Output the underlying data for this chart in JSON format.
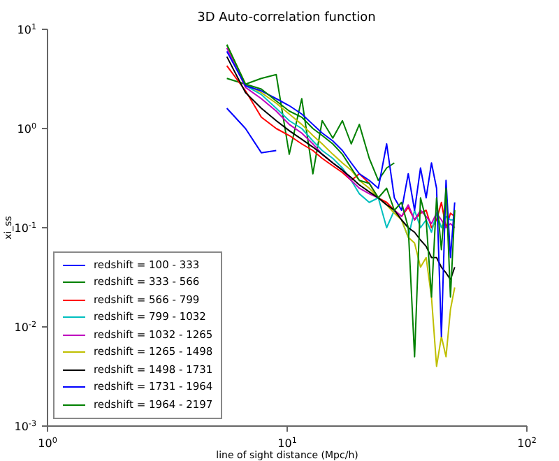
{
  "chart_data": {
    "type": "line",
    "title": "3D Auto-correlation function",
    "xlabel": "line of sight distance (Mpc/h)",
    "ylabel": "xi_ss",
    "log": "xy",
    "grid": false,
    "legend": "bottom left",
    "marker": "none",
    "line_style": "solid",
    "xlim": [
      1,
      100
    ],
    "xticks": [
      {
        "value": 1,
        "label": "10$^{0}$"
      },
      {
        "value": 10,
        "label": "10$^{1}$"
      },
      {
        "value": 100,
        "label": "10$^{2}$"
      }
    ],
    "ylim": [
      0.001,
      10
    ],
    "yticks": [
      {
        "value": 0.001,
        "label": "10$^{-3}$"
      },
      {
        "value": 0.01,
        "label": "10$^{-2}$"
      },
      {
        "value": 0.1,
        "label": "10$^{-1}$"
      },
      {
        "value": 1,
        "label": "10$^{0}$"
      },
      {
        "value": 10,
        "label": "10$^{1}$"
      }
    ],
    "x": [
      5.6,
      6.7,
      7.8,
      9,
      10.2,
      11.5,
      12.8,
      14,
      15.5,
      17,
      18.5,
      20,
      22,
      24,
      26,
      28,
      30,
      32,
      34,
      36,
      38,
      40,
      42,
      44,
      46,
      48,
      50
    ],
    "series": [
      {
        "name": "redshift = 100 - 333",
        "color": "#0000ff",
        "values": [
          1.6,
          1.0,
          0.57,
          0.6,
          null,
          null,
          null,
          null,
          null,
          null,
          null,
          null,
          null,
          null,
          null,
          null,
          null,
          null,
          null,
          null,
          null,
          null,
          null,
          null,
          null,
          null,
          null
        ]
      },
      {
        "name": "redshift = 333 - 566",
        "color": "#008000",
        "values": [
          3.2,
          2.8,
          3.2,
          3.5,
          0.55,
          2.0,
          0.35,
          1.2,
          0.8,
          1.2,
          0.7,
          1.1,
          0.5,
          0.3,
          0.4,
          0.45,
          null,
          null,
          null,
          null,
          null,
          null,
          null,
          null,
          null,
          null,
          null
        ]
      },
      {
        "name": "redshift = 566 - 799",
        "color": "#ff0000",
        "values": [
          4.3,
          2.4,
          1.3,
          1.0,
          0.85,
          0.7,
          0.6,
          0.5,
          0.42,
          0.36,
          0.3,
          0.35,
          0.28,
          0.2,
          0.18,
          0.15,
          0.13,
          0.16,
          0.12,
          0.14,
          0.15,
          0.1,
          0.12,
          0.18,
          0.1,
          0.14,
          0.13
        ]
      },
      {
        "name": "redshift = 799 - 1032",
        "color": "#00bfbf",
        "values": [
          7,
          2.7,
          2.2,
          1.6,
          1.2,
          1.0,
          0.75,
          0.6,
          0.5,
          0.4,
          0.3,
          0.22,
          0.18,
          0.2,
          0.1,
          0.15,
          0.12,
          0.08,
          0.15,
          0.1,
          0.12,
          0.09,
          0.14,
          0.1,
          0.13,
          0.12,
          0.12
        ]
      },
      {
        "name": "redshift = 1032 - 1265",
        "color": "#bf00bf",
        "values": [
          6.5,
          2.6,
          2.0,
          1.5,
          1.1,
          0.9,
          0.7,
          0.55,
          0.45,
          0.38,
          0.3,
          0.25,
          0.22,
          0.2,
          0.17,
          0.15,
          0.13,
          0.17,
          0.12,
          0.15,
          0.13,
          0.11,
          0.14,
          0.12,
          0.1,
          0.11,
          0.1
        ]
      },
      {
        "name": "redshift = 1265 - 1498",
        "color": "#bfbf00",
        "values": [
          7,
          2.8,
          2.3,
          1.8,
          1.4,
          1.1,
          0.85,
          0.7,
          0.55,
          0.45,
          0.38,
          0.3,
          0.25,
          0.2,
          0.17,
          0.14,
          0.12,
          0.08,
          0.07,
          0.04,
          0.05,
          0.02,
          0.004,
          0.008,
          0.005,
          0.015,
          0.025
        ]
      },
      {
        "name": "redshift = 1498 - 1731",
        "color": "#000000",
        "values": [
          5.3,
          2.3,
          1.6,
          1.2,
          0.95,
          0.78,
          0.65,
          0.55,
          0.45,
          0.38,
          0.32,
          0.27,
          0.23,
          0.2,
          0.17,
          0.15,
          0.12,
          0.1,
          0.09,
          0.075,
          0.065,
          0.05,
          0.05,
          0.04,
          0.035,
          0.03,
          0.04
        ]
      },
      {
        "name": "redshift = 1731 - 1964",
        "color": "#0000ff",
        "values": [
          6.0,
          2.7,
          2.4,
          2.0,
          1.7,
          1.4,
          1.1,
          0.9,
          0.75,
          0.6,
          0.45,
          0.35,
          0.3,
          0.25,
          0.7,
          0.2,
          0.15,
          0.35,
          0.15,
          0.4,
          0.2,
          0.45,
          0.25,
          0.008,
          0.3,
          0.05,
          0.18
        ]
      },
      {
        "name": "redshift = 1964 - 2197",
        "color": "#008000",
        "values": [
          7,
          2.8,
          2.5,
          1.9,
          1.5,
          1.3,
          1.0,
          0.85,
          0.7,
          0.55,
          0.4,
          0.3,
          0.28,
          0.2,
          0.25,
          0.15,
          0.18,
          0.1,
          0.005,
          0.2,
          0.12,
          0.02,
          0.2,
          0.06,
          0.25,
          0.02,
          0.15
        ]
      }
    ]
  }
}
